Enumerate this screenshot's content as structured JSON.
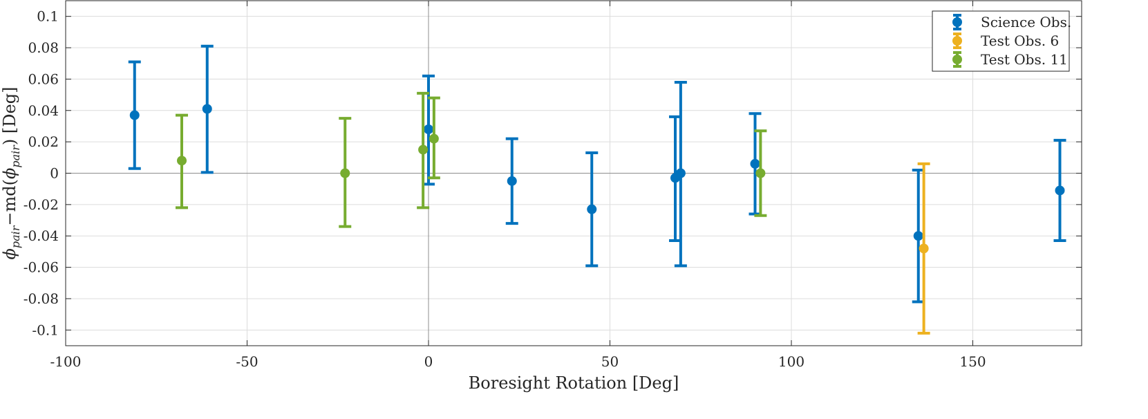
{
  "chart_data": {
    "type": "scatter",
    "title": "",
    "xlabel": "Boresight Rotation [Deg]",
    "ylabel": {
      "phi": "ϕ",
      "sub": "pair",
      "minus": "−md(",
      "close": ") [Deg]"
    },
    "xlim": [
      -100,
      180
    ],
    "ylim": [
      -0.11,
      0.11
    ],
    "xticks": [
      -100,
      -50,
      0,
      50,
      100,
      150
    ],
    "xtick_labels": [
      "-100",
      "-50",
      "0",
      "50",
      "100",
      "150"
    ],
    "yticks": [
      0.1,
      0.08,
      0.06,
      0.04,
      0.02,
      0,
      -0.02,
      -0.04,
      -0.06,
      -0.08,
      -0.1
    ],
    "ytick_labels": [
      "0.1",
      "0.08",
      "0.06",
      "0.04",
      "0.02",
      "0",
      "-0.02",
      "-0.04",
      "-0.06",
      "-0.08",
      "-0.1"
    ],
    "grid": true,
    "legend_position": "top-right",
    "series": [
      {
        "name": "Science Obs.",
        "color": "#0072BD",
        "points": [
          {
            "x": -81,
            "y": 0.037,
            "lo": 0.003,
            "hi": 0.071
          },
          {
            "x": -61,
            "y": 0.041,
            "lo": 0.0005,
            "hi": 0.081
          },
          {
            "x": 0,
            "y": 0.028,
            "lo": -0.007,
            "hi": 0.062
          },
          {
            "x": 23,
            "y": -0.005,
            "lo": -0.032,
            "hi": 0.022
          },
          {
            "x": 45,
            "y": -0.023,
            "lo": -0.059,
            "hi": 0.013
          },
          {
            "x": 68,
            "y": -0.003,
            "lo": -0.043,
            "hi": 0.036
          },
          {
            "x": 69.5,
            "y": 0.0,
            "lo": -0.059,
            "hi": 0.058
          },
          {
            "x": 90,
            "y": 0.006,
            "lo": -0.026,
            "hi": 0.038
          },
          {
            "x": 135,
            "y": -0.04,
            "lo": -0.082,
            "hi": 0.002
          },
          {
            "x": 174,
            "y": -0.011,
            "lo": -0.043,
            "hi": 0.021
          }
        ]
      },
      {
        "name": "Test Obs. 6",
        "color": "#EDB120",
        "points": [
          {
            "x": 136.5,
            "y": -0.048,
            "lo": -0.102,
            "hi": 0.006
          }
        ]
      },
      {
        "name": "Test Obs. 11",
        "color": "#77AC30",
        "points": [
          {
            "x": -68,
            "y": 0.008,
            "lo": -0.022,
            "hi": 0.037
          },
          {
            "x": -23,
            "y": 0.0,
            "lo": -0.034,
            "hi": 0.035
          },
          {
            "x": -1.5,
            "y": 0.015,
            "lo": -0.022,
            "hi": 0.051
          },
          {
            "x": 1.5,
            "y": 0.022,
            "lo": -0.003,
            "hi": 0.048
          },
          {
            "x": 91.5,
            "y": 0.0,
            "lo": -0.027,
            "hi": 0.027
          }
        ]
      }
    ]
  }
}
